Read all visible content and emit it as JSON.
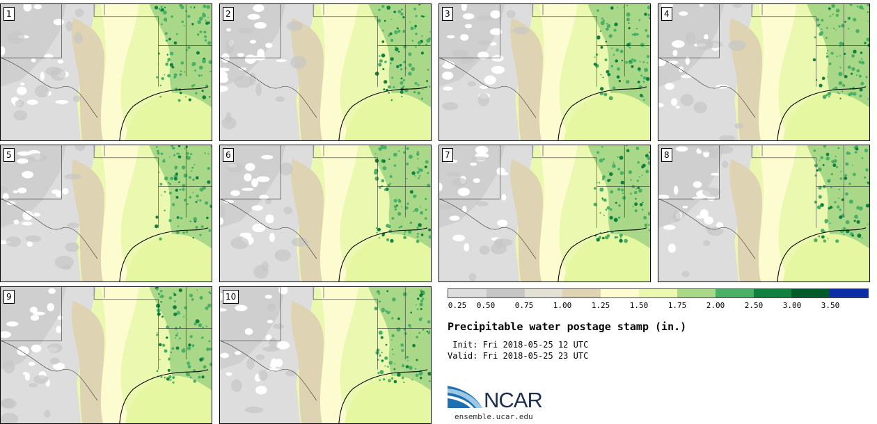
{
  "members": [
    {
      "label": "1"
    },
    {
      "label": "2"
    },
    {
      "label": "3"
    },
    {
      "label": "4"
    },
    {
      "label": "5"
    },
    {
      "label": "6"
    },
    {
      "label": "7"
    },
    {
      "label": "8"
    },
    {
      "label": "9"
    },
    {
      "label": "10"
    }
  ],
  "legend": {
    "title": "Precipitable water postage stamp (in.)",
    "init": " Init: Fri 2018-05-25 12 UTC",
    "valid": "Valid: Fri 2018-05-25 23 UTC",
    "ticks": [
      "0.25",
      "0.50",
      "0.75",
      "1.00",
      "1.25",
      "1.50",
      "1.75",
      "2.00",
      "2.50",
      "3.00",
      "3.50"
    ],
    "colors": [
      "#dddddd",
      "#c6c6c6",
      "#e3e1d6",
      "#ded3b3",
      "#fcfcd0",
      "#eaf8b0",
      "#a8d888",
      "#4ab065",
      "#10823e",
      "#005a2a",
      "#0b2ea8"
    ]
  },
  "branding": {
    "logo_text": "NCAR",
    "url": "ensemble.ucar.edu"
  }
}
